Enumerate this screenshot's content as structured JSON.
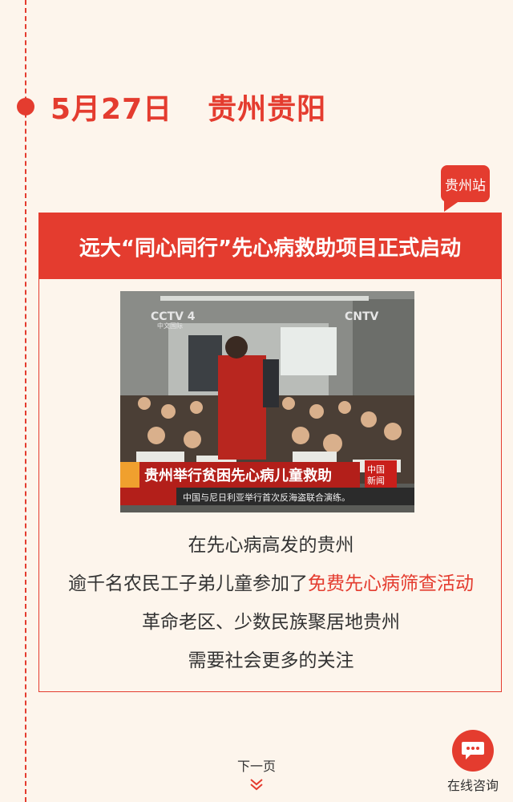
{
  "timeline": {
    "date": "5月27日",
    "location": "贵州贵阳",
    "accent_color": "#e43c2f"
  },
  "station_badge": "贵州站",
  "card": {
    "title": "远大“同心同行”先心病救助项目正式启动",
    "photo": {
      "channel_logo": "CCTV 4",
      "channel_sub": "中文国际",
      "corner_logo": "CNTV",
      "caption": "贵州举行贫困先心病儿童救助",
      "news_badge_top": "中国",
      "news_badge_bottom": "新闻",
      "ticker": "中国与尼日利亚举行首次反海盗联合演练。"
    },
    "lines": [
      "在先心病高发的贵州",
      "逾千名农民工子弟儿童参加了",
      "革命老区、少数民族聚居地贵州",
      "需要社会更多的关注"
    ],
    "highlight": "免费先心病筛查活动"
  },
  "footer": {
    "next_page": "下一页",
    "consult": "在线咨询",
    "icons": [
      "chevron-double-down-icon",
      "chat-bubble-icon"
    ]
  }
}
